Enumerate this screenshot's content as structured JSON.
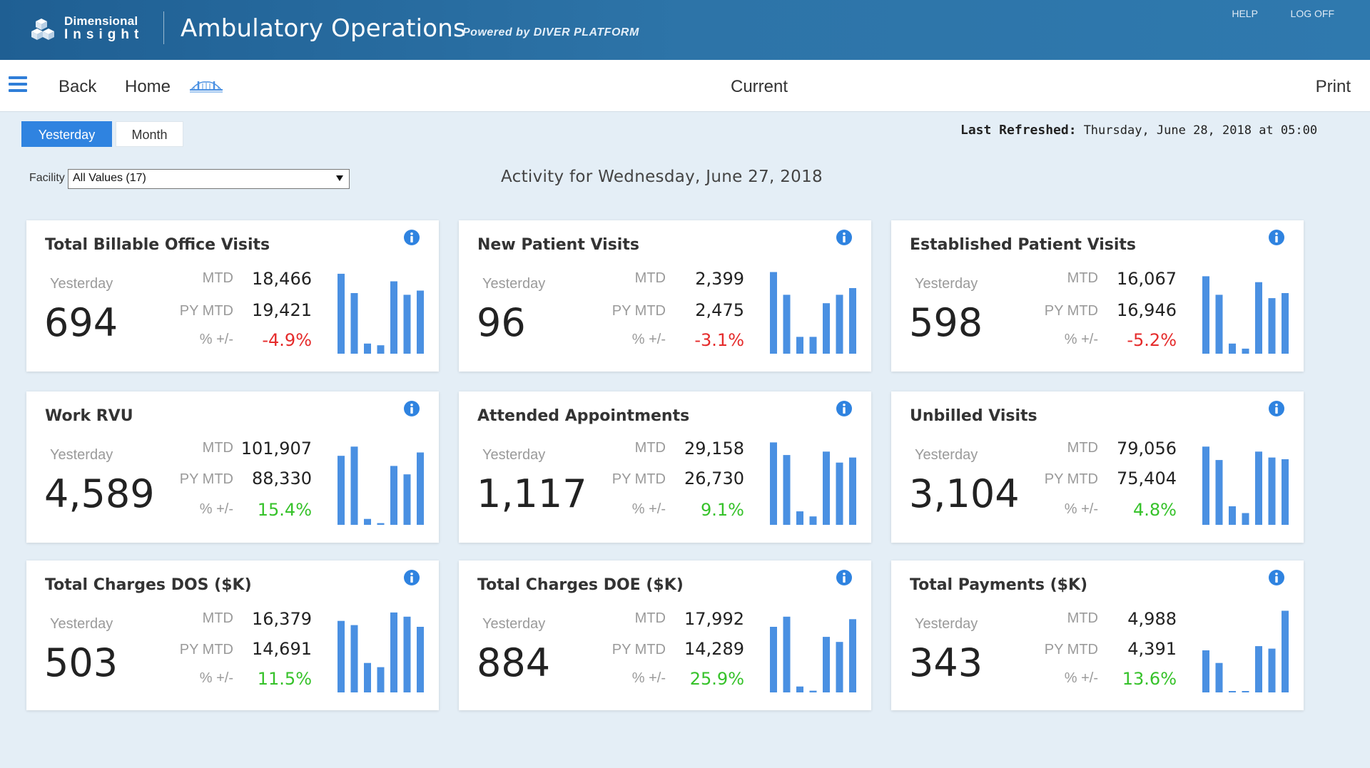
{
  "header": {
    "logo_line1": "Dimensional",
    "logo_line2": "Insight",
    "app_title": "Ambulatory Operations",
    "powered_by": "Powered by DIVER PLATFORM",
    "links": {
      "help": "HELP",
      "logoff": "LOG OFF"
    }
  },
  "nav": {
    "back": "Back",
    "home": "Home",
    "current": "Current",
    "print": "Print"
  },
  "toggle": {
    "yesterday": "Yesterday",
    "month": "Month",
    "selected": "Yesterday"
  },
  "refresh": {
    "label": "Last Refreshed:",
    "timestamp": "Thursday, June 28, 2018 at 05:00"
  },
  "filter": {
    "label": "Facility",
    "value": "All Values (17)"
  },
  "activity_title": "Activity for Wednesday, June 27, 2018",
  "colors": {
    "accent": "#2f83e0",
    "bar": "#4a90e2",
    "negative": "#e52b2b",
    "positive": "#36c22a",
    "header": "#2d74a8"
  },
  "labels": {
    "yesterday": "Yesterday",
    "mtd": "MTD",
    "py_mtd": "PY MTD",
    "pct": "% +/-"
  },
  "cards": [
    {
      "title": "Total Billable Office Visits",
      "yesterday": "694",
      "mtd": "18,466",
      "py_mtd": "19,421",
      "pct": "-4.9%",
      "trend": "neg",
      "bars": [
        0.95,
        0.72,
        0.12,
        0.1,
        0.86,
        0.7,
        0.75
      ]
    },
    {
      "title": "New Patient Visits",
      "yesterday": "96",
      "mtd": "2,399",
      "py_mtd": "2,475",
      "pct": "-3.1%",
      "trend": "neg",
      "bars": [
        0.97,
        0.7,
        0.2,
        0.2,
        0.6,
        0.7,
        0.78
      ]
    },
    {
      "title": "Established Patient Visits",
      "yesterday": "598",
      "mtd": "16,067",
      "py_mtd": "16,946",
      "pct": "-5.2%",
      "trend": "neg",
      "bars": [
        0.92,
        0.7,
        0.12,
        0.06,
        0.85,
        0.66,
        0.72
      ]
    },
    {
      "title": "Work RVU",
      "yesterday": "4,589",
      "mtd": "101,907",
      "py_mtd": "88,330",
      "pct": "15.4%",
      "trend": "pos",
      "bars": [
        0.82,
        0.93,
        0.07,
        0.02,
        0.7,
        0.6,
        0.86
      ]
    },
    {
      "title": "Attended Appointments",
      "yesterday": "1,117",
      "mtd": "29,158",
      "py_mtd": "26,730",
      "pct": "9.1%",
      "trend": "pos",
      "bars": [
        0.98,
        0.83,
        0.16,
        0.1,
        0.87,
        0.74,
        0.8
      ]
    },
    {
      "title": "Unbilled Visits",
      "yesterday": "3,104",
      "mtd": "79,056",
      "py_mtd": "75,404",
      "pct": "4.8%",
      "trend": "pos",
      "bars": [
        0.93,
        0.77,
        0.22,
        0.14,
        0.87,
        0.8,
        0.78
      ]
    },
    {
      "title": "Total Charges DOS ($K)",
      "yesterday": "503",
      "mtd": "16,379",
      "py_mtd": "14,691",
      "pct": "11.5%",
      "trend": "pos",
      "bars": [
        0.85,
        0.8,
        0.35,
        0.3,
        0.95,
        0.9,
        0.78
      ]
    },
    {
      "title": "Total Charges DOE ($K)",
      "yesterday": "884",
      "mtd": "17,992",
      "py_mtd": "14,289",
      "pct": "25.9%",
      "trend": "pos",
      "bars": [
        0.78,
        0.9,
        0.07,
        0.02,
        0.66,
        0.6,
        0.87
      ]
    },
    {
      "title": "Total Payments ($K)",
      "yesterday": "343",
      "mtd": "4,988",
      "py_mtd": "4,391",
      "pct": "13.6%",
      "trend": "pos",
      "bars": [
        0.5,
        0.35,
        0.01,
        0.01,
        0.55,
        0.52,
        0.97
      ]
    }
  ]
}
